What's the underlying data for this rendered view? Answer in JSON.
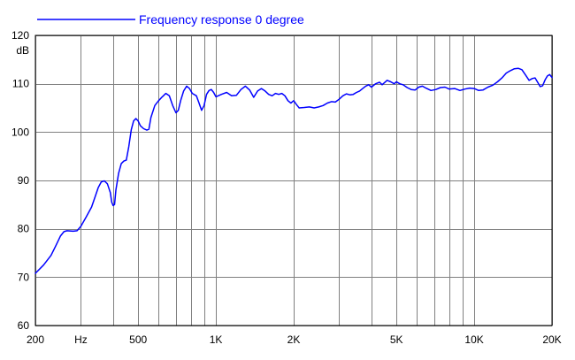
{
  "chart_data": {
    "type": "line",
    "title": "",
    "xlabel": "",
    "ylabel": "dB",
    "x_scale": "log",
    "xlim": [
      200,
      20000
    ],
    "ylim": [
      60,
      120
    ],
    "grid": true,
    "legend_position": "top-left",
    "x_ticks": [
      {
        "value": 200,
        "label": "200"
      },
      {
        "value": 300,
        "label": "Hz"
      },
      {
        "value": 500,
        "label": "500"
      },
      {
        "value": 1000,
        "label": "1K"
      },
      {
        "value": 2000,
        "label": "2K"
      },
      {
        "value": 5000,
        "label": "5K"
      },
      {
        "value": 10000,
        "label": "10K"
      },
      {
        "value": 20000,
        "label": "20K"
      }
    ],
    "x_gridlines": [
      200,
      300,
      400,
      500,
      600,
      700,
      800,
      900,
      1000,
      2000,
      3000,
      4000,
      5000,
      6000,
      7000,
      8000,
      9000,
      10000,
      20000
    ],
    "y_ticks": [
      {
        "value": 60,
        "label": "60"
      },
      {
        "value": 70,
        "label": "70"
      },
      {
        "value": 80,
        "label": "80"
      },
      {
        "value": 90,
        "label": "90"
      },
      {
        "value": 100,
        "label": "100"
      },
      {
        "value": 110,
        "label": "110"
      },
      {
        "value": 120,
        "label": "120"
      }
    ],
    "series": [
      {
        "name": "Frequency response 0 degree",
        "color": "#0000ff",
        "points": [
          [
            200,
            70.8
          ],
          [
            215,
            72.5
          ],
          [
            230,
            74.5
          ],
          [
            240,
            76.5
          ],
          [
            250,
            78.5
          ],
          [
            258,
            79.4
          ],
          [
            265,
            79.6
          ],
          [
            280,
            79.5
          ],
          [
            290,
            79.6
          ],
          [
            300,
            80.5
          ],
          [
            315,
            82.5
          ],
          [
            330,
            84.5
          ],
          [
            340,
            86.5
          ],
          [
            350,
            88.5
          ],
          [
            360,
            89.7
          ],
          [
            370,
            89.9
          ],
          [
            380,
            89.3
          ],
          [
            390,
            87.5
          ],
          [
            395,
            85.5
          ],
          [
            400,
            84.8
          ],
          [
            405,
            85.0
          ],
          [
            410,
            88.0
          ],
          [
            420,
            91.5
          ],
          [
            430,
            93.5
          ],
          [
            440,
            94.0
          ],
          [
            450,
            94.2
          ],
          [
            460,
            97.0
          ],
          [
            470,
            100.5
          ],
          [
            480,
            102.3
          ],
          [
            490,
            102.8
          ],
          [
            500,
            102.3
          ],
          [
            510,
            101.3
          ],
          [
            525,
            100.7
          ],
          [
            540,
            100.4
          ],
          [
            550,
            100.6
          ],
          [
            560,
            103.0
          ],
          [
            580,
            105.5
          ],
          [
            600,
            106.5
          ],
          [
            620,
            107.3
          ],
          [
            640,
            108.0
          ],
          [
            660,
            107.5
          ],
          [
            680,
            105.5
          ],
          [
            700,
            104.0
          ],
          [
            715,
            104.5
          ],
          [
            730,
            106.5
          ],
          [
            750,
            108.5
          ],
          [
            770,
            109.5
          ],
          [
            790,
            109.0
          ],
          [
            810,
            108.0
          ],
          [
            840,
            107.5
          ],
          [
            860,
            106.0
          ],
          [
            880,
            104.5
          ],
          [
            900,
            105.5
          ],
          [
            920,
            107.8
          ],
          [
            940,
            108.6
          ],
          [
            960,
            108.8
          ],
          [
            980,
            108.2
          ],
          [
            1000,
            107.3
          ],
          [
            1050,
            107.8
          ],
          [
            1100,
            108.2
          ],
          [
            1150,
            107.5
          ],
          [
            1200,
            107.6
          ],
          [
            1250,
            108.8
          ],
          [
            1300,
            109.5
          ],
          [
            1350,
            108.7
          ],
          [
            1400,
            107.2
          ],
          [
            1450,
            108.5
          ],
          [
            1500,
            109.0
          ],
          [
            1550,
            108.5
          ],
          [
            1600,
            107.8
          ],
          [
            1650,
            107.5
          ],
          [
            1700,
            108.0
          ],
          [
            1750,
            107.8
          ],
          [
            1800,
            108.0
          ],
          [
            1850,
            107.5
          ],
          [
            1900,
            106.5
          ],
          [
            1950,
            106.0
          ],
          [
            2000,
            106.5
          ],
          [
            2050,
            105.7
          ],
          [
            2100,
            105.0
          ],
          [
            2200,
            105.1
          ],
          [
            2300,
            105.2
          ],
          [
            2400,
            105.0
          ],
          [
            2500,
            105.2
          ],
          [
            2600,
            105.5
          ],
          [
            2700,
            106.0
          ],
          [
            2800,
            106.3
          ],
          [
            2900,
            106.2
          ],
          [
            3000,
            106.8
          ],
          [
            3100,
            107.5
          ],
          [
            3200,
            107.9
          ],
          [
            3300,
            107.7
          ],
          [
            3400,
            107.8
          ],
          [
            3500,
            108.2
          ],
          [
            3600,
            108.5
          ],
          [
            3700,
            109.0
          ],
          [
            3800,
            109.5
          ],
          [
            3900,
            109.8
          ],
          [
            4000,
            109.3
          ],
          [
            4150,
            110.0
          ],
          [
            4300,
            110.3
          ],
          [
            4400,
            109.8
          ],
          [
            4600,
            110.7
          ],
          [
            4750,
            110.4
          ],
          [
            4900,
            110.0
          ],
          [
            5000,
            110.4
          ],
          [
            5150,
            110.0
          ],
          [
            5300,
            109.8
          ],
          [
            5500,
            109.2
          ],
          [
            5700,
            108.8
          ],
          [
            5900,
            108.7
          ],
          [
            6100,
            109.3
          ],
          [
            6300,
            109.5
          ],
          [
            6500,
            109.1
          ],
          [
            6800,
            108.6
          ],
          [
            7100,
            108.8
          ],
          [
            7400,
            109.2
          ],
          [
            7700,
            109.3
          ],
          [
            8000,
            108.9
          ],
          [
            8400,
            109.0
          ],
          [
            8800,
            108.6
          ],
          [
            9200,
            108.9
          ],
          [
            9600,
            109.1
          ],
          [
            10000,
            109.0
          ],
          [
            10400,
            108.6
          ],
          [
            10800,
            108.7
          ],
          [
            11300,
            109.3
          ],
          [
            11800,
            109.7
          ],
          [
            12300,
            110.4
          ],
          [
            12800,
            111.2
          ],
          [
            13300,
            112.2
          ],
          [
            13800,
            112.7
          ],
          [
            14300,
            113.1
          ],
          [
            14800,
            113.2
          ],
          [
            15300,
            112.9
          ],
          [
            15800,
            111.8
          ],
          [
            16300,
            110.7
          ],
          [
            16800,
            111.1
          ],
          [
            17200,
            111.2
          ],
          [
            17600,
            110.3
          ],
          [
            18000,
            109.4
          ],
          [
            18400,
            109.6
          ],
          [
            18800,
            110.8
          ],
          [
            19200,
            111.6
          ],
          [
            19600,
            111.9
          ],
          [
            20000,
            111.3
          ]
        ]
      }
    ]
  }
}
